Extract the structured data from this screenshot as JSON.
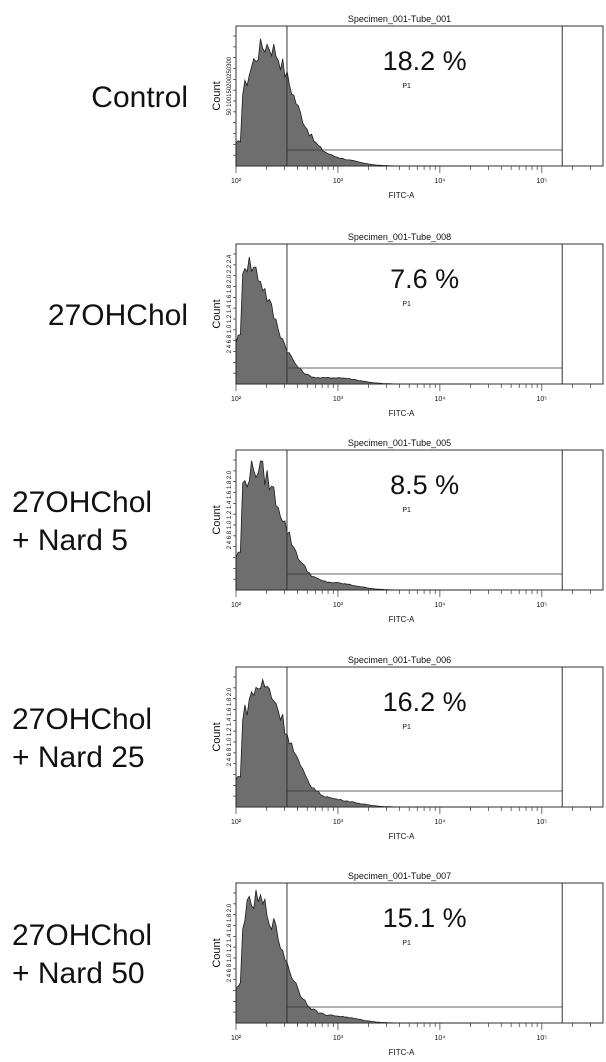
{
  "chart_data": [
    {
      "type": "area",
      "title": "Specimen_001-Tube_001",
      "condition": [
        "Control"
      ],
      "xlabel": "FITC-A",
      "ylabel": "Count",
      "xscale": "log",
      "xticks": [
        "10²",
        "10³",
        "10⁴",
        "10⁵"
      ],
      "gate_label": "P1",
      "gate_percent": "18.2 %",
      "y_tick_labels": "50 100150200250300",
      "peak_x": 2.3,
      "spread": 0.22
    },
    {
      "type": "area",
      "title": "Specimen_001-Tube_008",
      "condition": [
        "27OHChol"
      ],
      "xlabel": "FITC-A",
      "ylabel": "Count",
      "xscale": "log",
      "xticks": [
        "10²",
        "10³",
        "10⁴",
        "10⁵"
      ],
      "gate_label": "P1",
      "gate_percent": "7.6 %",
      "y_tick_labels": "2 4 6 8 1.0 1.2 1.4 1.6 1.8 2.0 2.2 2.4",
      "peak_x": 2.1,
      "spread": 0.22
    },
    {
      "type": "area",
      "title": "Specimen_001-Tube_005",
      "condition": [
        "27OHChol",
        "+ Nard 5"
      ],
      "xlabel": "FITC-A",
      "ylabel": "Count",
      "xscale": "log",
      "xticks": [
        "10²",
        "10³",
        "10⁴",
        "10⁵"
      ],
      "gate_label": "P1",
      "gate_percent": "8.5 %",
      "y_tick_labels": "2 4 6 8 1.0 1.2 1.4 1.6 1.8 2.0",
      "peak_x": 2.2,
      "spread": 0.22
    },
    {
      "type": "area",
      "title": "Specimen_001-Tube_006",
      "condition": [
        "27OHChol",
        "+ Nard 25"
      ],
      "xlabel": "FITC-A",
      "ylabel": "Count",
      "xscale": "log",
      "xticks": [
        "10²",
        "10³",
        "10⁴",
        "10⁵"
      ],
      "gate_label": "P1",
      "gate_percent": "16.2 %",
      "y_tick_labels": "2 4 6 8 1.0 1.2 1.4 1.6 1.8 2.0",
      "peak_x": 2.25,
      "spread": 0.22
    },
    {
      "type": "area",
      "title": "Specimen_001-Tube_007",
      "condition": [
        "27OHChol",
        "+ Nard 50"
      ],
      "xlabel": "FITC-A",
      "ylabel": "Count",
      "xscale": "log",
      "xticks": [
        "10²",
        "10³",
        "10⁴",
        "10⁵"
      ],
      "gate_label": "P1",
      "gate_percent": "15.1 %",
      "y_tick_labels": "2 4 6 8 1.0 1.2 1.4 1.6 1.8 2.0",
      "peak_x": 2.2,
      "spread": 0.22
    }
  ],
  "colors": {
    "histogram_fill": "#6e6e6e",
    "histogram_stroke": "#1c1c1c",
    "frame": "#333333",
    "text": "#111111"
  }
}
